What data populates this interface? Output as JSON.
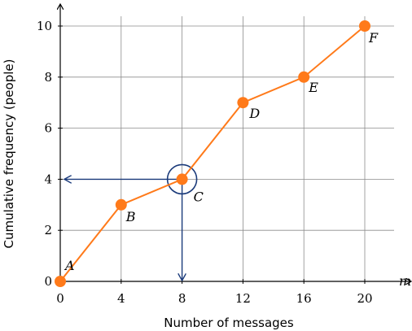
{
  "chart_data": {
    "type": "line",
    "xlabel": "Number of messages",
    "ylabel": "Cumulative frequency (people)",
    "x_axis_symbol": "m",
    "xlim": [
      0,
      20
    ],
    "ylim": [
      0,
      10
    ],
    "x_ticks": [
      0,
      4,
      8,
      12,
      16,
      20
    ],
    "y_ticks": [
      0,
      2,
      4,
      6,
      8,
      10
    ],
    "grid": true,
    "series": [
      {
        "points": [
          {
            "label": "A",
            "x": 0,
            "y": 0
          },
          {
            "label": "B",
            "x": 4,
            "y": 3
          },
          {
            "label": "C",
            "x": 8,
            "y": 4
          },
          {
            "label": "D",
            "x": 12,
            "y": 7
          },
          {
            "label": "E",
            "x": 16,
            "y": 8
          },
          {
            "label": "F",
            "x": 20,
            "y": 10
          }
        ]
      }
    ],
    "annotations": {
      "highlight_point": "C",
      "reading_lines": {
        "x": 8,
        "y": 4
      }
    },
    "colors": {
      "series": "#ff7a1a",
      "annotation": "#1a3a7a",
      "grid": "#8c8c8c",
      "axis": "#000000"
    }
  }
}
